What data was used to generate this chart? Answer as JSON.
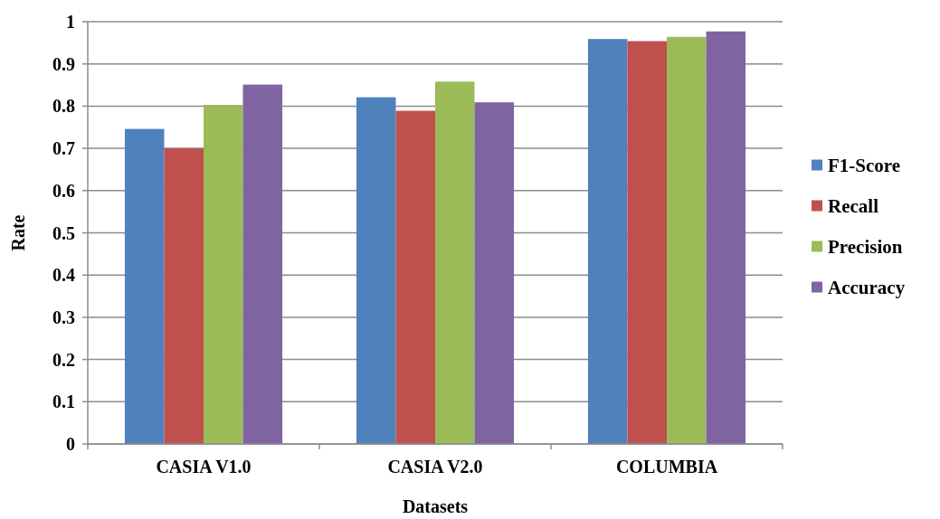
{
  "chart_data": {
    "type": "bar",
    "xlabel": "Datasets",
    "ylabel": "Rate",
    "categories": [
      "CASIA V1.0",
      "CASIA V2.0",
      "COLUMBIA"
    ],
    "series": [
      {
        "name": "F1-Score",
        "color": "#4f81bd",
        "values": [
          0.746,
          0.821,
          0.959
        ]
      },
      {
        "name": "Recall",
        "color": "#c0504d",
        "values": [
          0.7,
          0.789,
          0.954
        ]
      },
      {
        "name": "Precision",
        "color": "#9bbb59",
        "values": [
          0.803,
          0.858,
          0.964
        ]
      },
      {
        "name": "Accuracy",
        "color": "#8064a2",
        "values": [
          0.851,
          0.809,
          0.977
        ]
      }
    ],
    "ylim": [
      0,
      1
    ],
    "yticks": [
      0,
      0.1,
      0.2,
      0.3,
      0.4,
      0.5,
      0.6,
      0.7,
      0.8,
      0.9,
      1
    ],
    "grid": "y",
    "legend": "right"
  }
}
